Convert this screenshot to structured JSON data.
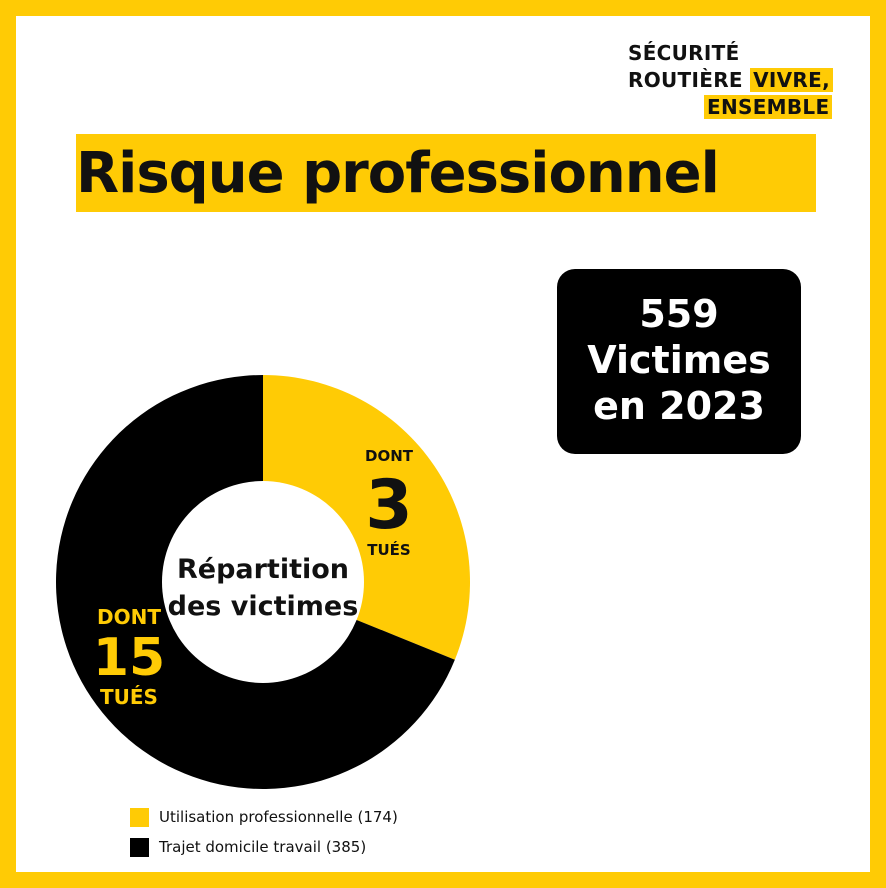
{
  "brand": {
    "line1": "SÉCURITÉ",
    "line2": "ROUTIÈRE",
    "tagline1": "VIVRE,",
    "tagline2": "ENSEMBLE"
  },
  "title": "Risque professionnel",
  "summary": {
    "number": "559",
    "label": "Victimes",
    "year": "en 2023"
  },
  "colors": {
    "accent": "#ffcb05",
    "dark": "#000000"
  },
  "chart_data": {
    "type": "pie",
    "title": "Répartition des victimes",
    "title_lines": [
      "Répartition",
      "des victimes"
    ],
    "categories": [
      "Utilisation professionnelle (174)",
      "Trajet domicile travail (385)"
    ],
    "values": [
      174,
      385
    ],
    "colors": [
      "#ffcb05",
      "#000000"
    ],
    "annotations": [
      {
        "prefix": "DONT",
        "value": "3",
        "suffix": "TUÉS"
      },
      {
        "prefix": "DONT",
        "value": "15",
        "suffix": "TUÉS"
      }
    ],
    "legend_position": "bottom-left"
  }
}
